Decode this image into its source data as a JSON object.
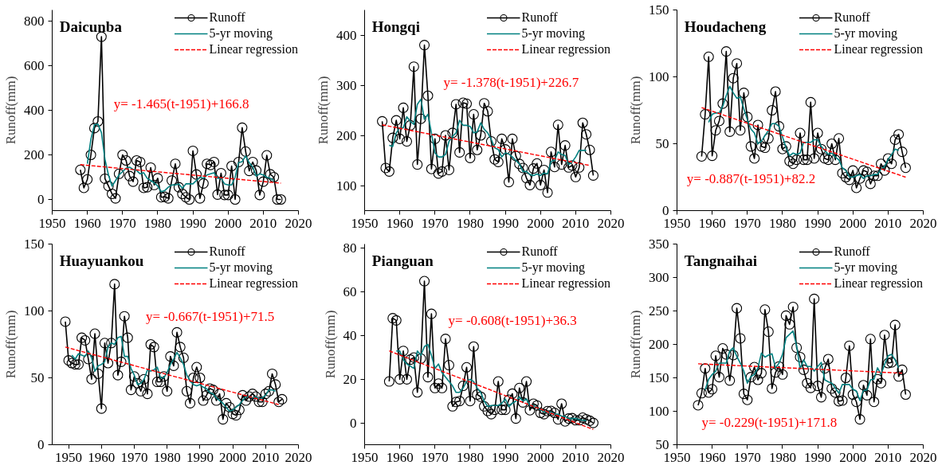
{
  "chart_data": [
    {
      "type": "line",
      "title": "Daicunba",
      "ylabel": "Runoff(mm)",
      "xlim": [
        1950,
        2020
      ],
      "xticks": [
        1950,
        1960,
        1970,
        1980,
        1990,
        2000,
        2010,
        2020
      ],
      "ylim": [
        -50,
        850
      ],
      "yticks": [
        0,
        200,
        400,
        600,
        800
      ],
      "grid": false,
      "legend": "top right",
      "annotations": [
        "y= -1.465(t-1951)+166.8"
      ],
      "series": [
        {
          "name": "Runoff",
          "color": "#000000",
          "marker": "circle",
          "x": [
            1958,
            1959,
            1960,
            1961,
            1962,
            1963,
            1964,
            1965,
            1966,
            1967,
            1968,
            1969,
            1970,
            1971,
            1972,
            1973,
            1974,
            1975,
            1976,
            1977,
            1978,
            1979,
            1980,
            1981,
            1982,
            1983,
            1984,
            1985,
            1986,
            1987,
            1988,
            1989,
            1990,
            1991,
            1992,
            1993,
            1994,
            1995,
            1996,
            1997,
            1998,
            1999,
            2000,
            2001,
            2002,
            2003,
            2004,
            2005,
            2006,
            2007,
            2008,
            2009,
            2010,
            2011,
            2012,
            2013,
            2014,
            2015
          ],
          "values": [
            133,
            52,
            90,
            200,
            320,
            350,
            730,
            93,
            60,
            25,
            5,
            115,
            200,
            175,
            105,
            80,
            175,
            168,
            52,
            55,
            143,
            65,
            95,
            10,
            12,
            5,
            85,
            160,
            55,
            25,
            10,
            0,
            218,
            112,
            5,
            72,
            160,
            155,
            168,
            22,
            118,
            20,
            20,
            150,
            0,
            168,
            322,
            215,
            128,
            168,
            130,
            20,
            80,
            198,
            113,
            100,
            0,
            0
          ]
        },
        {
          "name": "5-yr moving",
          "color": "#008080",
          "marker": "none",
          "x": [
            1960,
            1961,
            1962,
            1963,
            1964,
            1965,
            1966,
            1967,
            1968,
            1969,
            1970,
            1971,
            1972,
            1973,
            1974,
            1975,
            1976,
            1977,
            1978,
            1979,
            1980,
            1981,
            1982,
            1983,
            1984,
            1985,
            1986,
            1987,
            1988,
            1989,
            1990,
            1991,
            1992,
            1993,
            1994,
            1995,
            1996,
            1997,
            1998,
            1999,
            2000,
            2001,
            2002,
            2003,
            2004,
            2005,
            2006,
            2007,
            2008,
            2009,
            2010,
            2011,
            2012,
            2013
          ],
          "values": [
            160,
            270,
            335,
            338,
            300,
            180,
            110,
            60,
            85,
            110,
            125,
            140,
            145,
            135,
            130,
            115,
            120,
            95,
            85,
            75,
            60,
            35,
            40,
            55,
            65,
            65,
            70,
            50,
            70,
            70,
            70,
            85,
            100,
            95,
            110,
            115,
            120,
            95,
            95,
            70,
            65,
            65,
            100,
            165,
            170,
            195,
            165,
            145,
            105,
            115,
            110,
            100,
            95,
            85
          ]
        },
        {
          "name": "Linear regression",
          "color": "#ff0000",
          "marker": "none",
          "line_style": "dashed",
          "x": [
            1958,
            2015
          ],
          "values": [
            156,
            73
          ]
        }
      ]
    },
    {
      "type": "line",
      "title": "Hongqi",
      "ylabel": "Runoff(mm)",
      "xlim": [
        1950,
        2020
      ],
      "xticks": [
        1950,
        1960,
        1970,
        1980,
        1990,
        2000,
        2010,
        2020
      ],
      "ylim": [
        50,
        450
      ],
      "yticks": [
        100,
        200,
        300,
        400
      ],
      "grid": false,
      "legend": "top right",
      "annotations": [
        "y= -1.378(t-1951)+226.7"
      ],
      "series": [
        {
          "name": "Runoff",
          "color": "#000000",
          "marker": "circle",
          "x": [
            1955,
            1956,
            1957,
            1958,
            1959,
            1960,
            1961,
            1962,
            1963,
            1964,
            1965,
            1966,
            1967,
            1968,
            1969,
            1970,
            1971,
            1972,
            1973,
            1974,
            1975,
            1976,
            1977,
            1978,
            1979,
            1980,
            1981,
            1982,
            1983,
            1984,
            1985,
            1986,
            1987,
            1988,
            1989,
            1990,
            1991,
            1992,
            1993,
            1994,
            1995,
            1996,
            1997,
            1998,
            1999,
            2000,
            2001,
            2002,
            2003,
            2004,
            2005,
            2006,
            2007,
            2008,
            2009,
            2010,
            2011,
            2012,
            2013,
            2014,
            2015
          ],
          "values": [
            228,
            135,
            128,
            195,
            230,
            193,
            255,
            188,
            220,
            337,
            142,
            233,
            380,
            279,
            133,
            193,
            124,
            128,
            200,
            131,
            205,
            262,
            166,
            265,
            263,
            155,
            242,
            171,
            200,
            264,
            248,
            188,
            152,
            147,
            193,
            172,
            107,
            193,
            159,
            143,
            135,
            115,
            101,
            134,
            144,
            101,
            131,
            86,
            167,
            137,
            221,
            142,
            180,
            136,
            140,
            117,
            136,
            225,
            202,
            171,
            120
          ]
        },
        {
          "name": "5-yr moving",
          "color": "#008080",
          "marker": "none",
          "x": [
            1957,
            1958,
            1959,
            1960,
            1961,
            1962,
            1963,
            1964,
            1965,
            1966,
            1967,
            1968,
            1969,
            1970,
            1971,
            1972,
            1973,
            1974,
            1975,
            1976,
            1977,
            1978,
            1979,
            1980,
            1981,
            1982,
            1983,
            1984,
            1985,
            1986,
            1987,
            1988,
            1989,
            1990,
            1991,
            1992,
            1993,
            1994,
            1995,
            1996,
            1997,
            1998,
            1999,
            2000,
            2001,
            2002,
            2003,
            2004,
            2005,
            2006,
            2007,
            2008,
            2009,
            2010,
            2011,
            2012,
            2013
          ],
          "values": [
            180,
            178,
            205,
            215,
            215,
            237,
            228,
            222,
            262,
            272,
            232,
            242,
            205,
            165,
            157,
            157,
            162,
            188,
            198,
            205,
            230,
            220,
            220,
            218,
            205,
            207,
            225,
            212,
            205,
            192,
            175,
            172,
            157,
            165,
            163,
            157,
            150,
            143,
            128,
            128,
            122,
            120,
            123,
            120,
            125,
            123,
            148,
            150,
            167,
            162,
            160,
            142,
            147,
            157,
            170,
            170,
            170
          ]
        },
        {
          "name": "Linear regression",
          "color": "#ff0000",
          "marker": "none",
          "line_style": "dashed",
          "x": [
            1955,
            2014
          ],
          "values": [
            221,
            140
          ]
        }
      ]
    },
    {
      "type": "line",
      "title": "Houdacheng",
      "ylabel": "Runoff(mm)",
      "xlim": [
        1950,
        2020
      ],
      "xticks": [
        1950,
        1960,
        1970,
        1980,
        1990,
        2000,
        2010,
        2020
      ],
      "ylim": [
        0,
        150
      ],
      "yticks": [
        0,
        50,
        100,
        150
      ],
      "grid": false,
      "legend": "top right",
      "annotations": [
        "y= -0.887(t-1951)+82.2"
      ],
      "series": [
        {
          "name": "Runoff",
          "color": "#000000",
          "marker": "circle",
          "x": [
            1957,
            1958,
            1959,
            1960,
            1961,
            1962,
            1963,
            1964,
            1965,
            1966,
            1967,
            1968,
            1969,
            1970,
            1971,
            1972,
            1973,
            1974,
            1975,
            1976,
            1977,
            1978,
            1979,
            1980,
            1981,
            1982,
            1983,
            1984,
            1985,
            1986,
            1987,
            1988,
            1989,
            1990,
            1991,
            1992,
            1993,
            1994,
            1995,
            1996,
            1997,
            1998,
            1999,
            2000,
            2001,
            2002,
            2003,
            2004,
            2005,
            2006,
            2007,
            2008,
            2009,
            2010,
            2011,
            2012,
            2013,
            2014,
            2015
          ],
          "values": [
            40.5,
            72,
            115,
            41,
            60,
            67,
            80,
            119,
            59,
            99,
            110,
            60,
            88,
            70,
            48,
            39,
            64,
            48,
            47,
            54,
            75,
            89,
            63,
            46,
            48,
            37,
            35,
            38,
            58,
            38,
            38,
            81,
            39,
            58,
            46,
            39,
            38,
            50,
            38,
            54,
            28,
            25,
            23,
            30,
            17,
            24,
            30,
            29,
            20,
            26,
            26,
            35,
            30,
            39,
            35,
            53,
            57,
            44,
            32
          ]
        },
        {
          "name": "5-yr moving",
          "color": "#008080",
          "marker": "none",
          "x": [
            1959,
            1960,
            1961,
            1962,
            1963,
            1964,
            1965,
            1966,
            1967,
            1968,
            1969,
            1970,
            1971,
            1972,
            1973,
            1974,
            1975,
            1976,
            1977,
            1978,
            1979,
            1980,
            1981,
            1982,
            1983,
            1984,
            1985,
            1986,
            1987,
            1988,
            1989,
            1990,
            1991,
            1992,
            1993,
            1994,
            1995,
            1996,
            1997,
            1998,
            1999,
            2000,
            2001,
            2002,
            2003,
            2004,
            2005,
            2006,
            2007,
            2008,
            2009,
            2010,
            2011,
            2012,
            2013
          ],
          "values": [
            66,
            72,
            73,
            73,
            78,
            86,
            93,
            88,
            84,
            85,
            76,
            68,
            61,
            58,
            50,
            52,
            56,
            60,
            65,
            65,
            63,
            55,
            47,
            41,
            43,
            42,
            43,
            51,
            51,
            51,
            53,
            53,
            48,
            45,
            42,
            43,
            40,
            38,
            32,
            30,
            25,
            25,
            26,
            27,
            24,
            26,
            26,
            27,
            27,
            31,
            33,
            38,
            42,
            46,
            45
          ]
        },
        {
          "name": "Linear regression",
          "color": "#ff0000",
          "marker": "none",
          "line_style": "dashed",
          "x": [
            1957,
            2015
          ],
          "values": [
            77,
            25
          ]
        }
      ]
    },
    {
      "type": "line",
      "title": "Huayuankou",
      "ylabel": "Runoff(mm)",
      "xlim": [
        1945,
        2020
      ],
      "xticks": [
        1950,
        1960,
        1970,
        1980,
        1990,
        2000,
        2010,
        2020
      ],
      "ylim": [
        0,
        150
      ],
      "yticks": [
        0,
        50,
        100,
        150
      ],
      "grid": false,
      "legend": "top right",
      "annotations": [
        "y= -0.667(t-1951)+71.5"
      ],
      "series": [
        {
          "name": "Runoff",
          "color": "#000000",
          "marker": "circle",
          "x": [
            1949,
            1950,
            1951,
            1952,
            1953,
            1954,
            1955,
            1956,
            1957,
            1958,
            1959,
            1960,
            1961,
            1962,
            1963,
            1964,
            1965,
            1966,
            1967,
            1968,
            1969,
            1970,
            1971,
            1972,
            1973,
            1974,
            1975,
            1976,
            1977,
            1978,
            1979,
            1980,
            1981,
            1982,
            1983,
            1984,
            1985,
            1986,
            1987,
            1988,
            1989,
            1990,
            1991,
            1992,
            1993,
            1994,
            1995,
            1996,
            1997,
            1998,
            1999,
            2000,
            2001,
            2002,
            2003,
            2004,
            2005,
            2006,
            2007,
            2008,
            2009,
            2010,
            2011,
            2012,
            2013,
            2014,
            2015
          ],
          "values": [
            92,
            63,
            61,
            60,
            60,
            80,
            78,
            64,
            49,
            83,
            53,
            27,
            76,
            61,
            76,
            120,
            52,
            62,
            96,
            80,
            41,
            51,
            46,
            40,
            49,
            38,
            75,
            73,
            47,
            47,
            51,
            40,
            66,
            59,
            84,
            73,
            65,
            40,
            31,
            50,
            58,
            50,
            33,
            37,
            42,
            41,
            33,
            38,
            19,
            31,
            28,
            23,
            22,
            26,
            37,
            33,
            36,
            38,
            36,
            32,
            32,
            38,
            40,
            53,
            45,
            32,
            34
          ]
        },
        {
          "name": "5-yr moving",
          "color": "#008080",
          "marker": "none",
          "x": [
            1951,
            1952,
            1953,
            1954,
            1955,
            1956,
            1957,
            1958,
            1959,
            1960,
            1961,
            1962,
            1963,
            1964,
            1965,
            1966,
            1967,
            1968,
            1969,
            1970,
            1971,
            1972,
            1973,
            1974,
            1975,
            1976,
            1977,
            1978,
            1979,
            1980,
            1981,
            1982,
            1983,
            1984,
            1985,
            1986,
            1987,
            1988,
            1989,
            1990,
            1991,
            1992,
            1993,
            1994,
            1995,
            1996,
            1997,
            1998,
            1999,
            2000,
            2001,
            2002,
            2003,
            2004,
            2005,
            2006,
            2007,
            2008,
            2009,
            2010,
            2011,
            2012,
            2013
          ],
          "values": [
            67,
            64,
            68,
            67,
            66,
            70,
            65,
            55,
            59,
            60,
            62,
            73,
            76,
            75,
            80,
            81,
            66,
            66,
            57,
            52,
            45,
            46,
            49,
            56,
            55,
            56,
            58,
            50,
            50,
            54,
            60,
            64,
            69,
            65,
            60,
            52,
            48,
            45,
            44,
            45,
            43,
            42,
            39,
            38,
            35,
            33,
            31,
            28,
            25,
            26,
            28,
            30,
            33,
            36,
            36,
            35,
            36,
            34,
            35,
            37,
            41,
            41,
            40
          ]
        },
        {
          "name": "Linear regression",
          "color": "#ff0000",
          "marker": "none",
          "line_style": "dashed",
          "x": [
            1949,
            2014
          ],
          "values": [
            73,
            30
          ]
        }
      ]
    },
    {
      "type": "line",
      "title": "Pianguan",
      "ylabel": "Runoff(mm)",
      "xlim": [
        1950,
        2020
      ],
      "xticks": [
        1950,
        1960,
        1970,
        1980,
        1990,
        2000,
        2010,
        2020
      ],
      "ylim": [
        -10,
        82
      ],
      "yticks": [
        0,
        20,
        40,
        60,
        80
      ],
      "grid": false,
      "legend": "top right",
      "annotations": [
        "y= -0.608(t-1951)+36.3"
      ],
      "series": [
        {
          "name": "Runoff",
          "color": "#000000",
          "marker": "circle",
          "x": [
            1957,
            1958,
            1959,
            1960,
            1961,
            1962,
            1963,
            1964,
            1965,
            1966,
            1967,
            1968,
            1969,
            1970,
            1971,
            1972,
            1973,
            1974,
            1975,
            1976,
            1977,
            1978,
            1979,
            1980,
            1981,
            1982,
            1983,
            1984,
            1985,
            1986,
            1987,
            1988,
            1989,
            1990,
            1991,
            1992,
            1993,
            1994,
            1995,
            1996,
            1997,
            1998,
            1999,
            2000,
            2001,
            2002,
            2003,
            2004,
            2005,
            2006,
            2007,
            2008,
            2009,
            2010,
            2011,
            2012,
            2013,
            2014,
            2015
          ],
          "values": [
            19,
            48,
            47,
            20,
            33,
            20,
            29,
            30,
            14,
            29.5,
            65,
            21,
            50,
            16,
            18,
            16,
            38.5,
            26.5,
            7.6,
            9.6,
            10,
            17,
            25.5,
            10,
            35,
            13,
            12,
            7.6,
            5.5,
            4,
            6,
            19,
            6,
            6,
            10.6,
            13.4,
            2,
            16,
            9.4,
            19,
            5.8,
            8.8,
            8,
            4.6,
            4,
            5.4,
            5.5,
            4.6,
            1.6,
            8.8,
            0.7,
            2,
            2.2,
            1.2,
            1.2,
            2.4,
            1.7,
            1,
            0
          ]
        },
        {
          "name": "5-yr moving",
          "color": "#008080",
          "marker": "none",
          "x": [
            1959,
            1960,
            1961,
            1962,
            1963,
            1964,
            1965,
            1966,
            1967,
            1968,
            1969,
            1970,
            1971,
            1972,
            1973,
            1974,
            1975,
            1976,
            1977,
            1978,
            1979,
            1980,
            1981,
            1982,
            1983,
            1984,
            1985,
            1986,
            1987,
            1988,
            1989,
            1990,
            1991,
            1992,
            1993,
            1994,
            1995,
            1996,
            1997,
            1998,
            1999,
            2000,
            2001,
            2002,
            2003,
            2004,
            2005,
            2006,
            2007,
            2008,
            2009,
            2010,
            2011,
            2012,
            2013
          ],
          "values": [
            33,
            33,
            29,
            27,
            26,
            25,
            33,
            31,
            35,
            36,
            31,
            25,
            27,
            23,
            21,
            19,
            17,
            14,
            14,
            16,
            19,
            20,
            19,
            16,
            14,
            10,
            7.5,
            8,
            8,
            8,
            9,
            11,
            7.5,
            9,
            10,
            12,
            10,
            11,
            8,
            8,
            7,
            6,
            5,
            5,
            5,
            4,
            4,
            3,
            3,
            2,
            2,
            2,
            1.5,
            1.2,
            1
          ]
        },
        {
          "name": "Linear regression",
          "color": "#ff0000",
          "marker": "none",
          "line_style": "dashed",
          "x": [
            1957,
            2015
          ],
          "values": [
            33,
            -3
          ]
        }
      ]
    },
    {
      "type": "line",
      "title": "Tangnaihai",
      "ylabel": "Runoff(mm)",
      "xlim": [
        1950,
        2020
      ],
      "xticks": [
        1950,
        1960,
        1970,
        1980,
        1990,
        2000,
        2010,
        2020
      ],
      "ylim": [
        50,
        350
      ],
      "yticks": [
        50,
        100,
        150,
        200,
        250,
        300,
        350
      ],
      "grid": false,
      "legend": "top right",
      "annotations": [
        "y= -0.229(t-1951)+171.8"
      ],
      "series": [
        {
          "name": "Runoff",
          "color": "#000000",
          "marker": "circle",
          "x": [
            1956,
            1957,
            1958,
            1959,
            1960,
            1961,
            1962,
            1963,
            1964,
            1965,
            1966,
            1967,
            1968,
            1969,
            1970,
            1971,
            1972,
            1973,
            1974,
            1975,
            1976,
            1977,
            1978,
            1979,
            1980,
            1981,
            1982,
            1983,
            1984,
            1985,
            1986,
            1987,
            1988,
            1989,
            1990,
            1991,
            1992,
            1993,
            1994,
            1995,
            1996,
            1997,
            1998,
            1999,
            2000,
            2001,
            2002,
            2003,
            2004,
            2005,
            2006,
            2007,
            2008,
            2009,
            2010,
            2011,
            2012,
            2013,
            2014,
            2015
          ],
          "values": [
            109,
            127,
            164,
            128,
            133,
            183,
            151,
            194,
            185,
            146,
            184,
            254,
            209,
            126,
            117,
            151,
            166,
            147,
            157,
            252,
            219,
            134,
            158,
            167,
            155,
            243,
            230,
            256,
            195,
            181,
            162,
            142,
            135,
            268,
            138,
            121,
            164,
            178,
            134,
            128,
            115,
            116,
            150,
            198,
            125,
            114,
            88,
            139,
            124,
            208,
            114,
            148,
            142,
            214,
            172,
            173,
            229,
            152,
            162,
            125
          ]
        },
        {
          "name": "5-yr moving",
          "color": "#008080",
          "marker": "none",
          "x": [
            1958,
            1959,
            1960,
            1961,
            1962,
            1963,
            1964,
            1965,
            1966,
            1967,
            1968,
            1969,
            1970,
            1971,
            1972,
            1973,
            1974,
            1975,
            1976,
            1977,
            1978,
            1979,
            1980,
            1981,
            1982,
            1983,
            1984,
            1985,
            1986,
            1987,
            1988,
            1989,
            1990,
            1991,
            1992,
            1993,
            1994,
            1995,
            1996,
            1997,
            1998,
            1999,
            2000,
            2001,
            2002,
            2003,
            2004,
            2005,
            2006,
            2007,
            2008,
            2009,
            2010,
            2011,
            2012,
            2013
          ],
          "values": [
            132,
            148,
            155,
            160,
            172,
            172,
            172,
            190,
            195,
            182,
            172,
            160,
            142,
            152,
            155,
            165,
            187,
            181,
            184,
            186,
            165,
            172,
            185,
            210,
            215,
            220,
            198,
            163,
            177,
            167,
            167,
            160,
            167,
            173,
            147,
            144,
            142,
            135,
            127,
            140,
            140,
            140,
            133,
            130,
            116,
            131,
            132,
            147,
            148,
            165,
            155,
            170,
            183,
            185,
            177,
            165
          ]
        },
        {
          "name": "Linear regression",
          "color": "#ff0000",
          "marker": "none",
          "line_style": "dashed",
          "x": [
            1956,
            2014
          ],
          "values": [
            171,
            157
          ]
        }
      ]
    }
  ]
}
